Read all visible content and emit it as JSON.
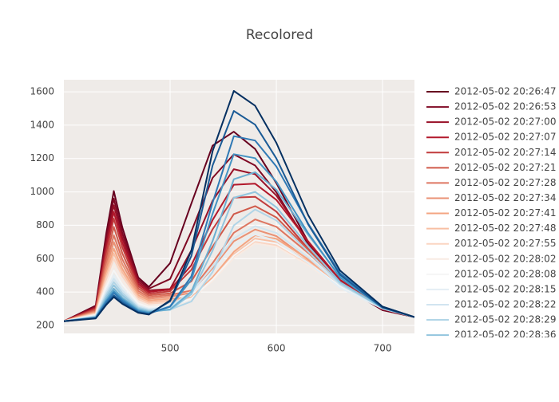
{
  "chart_data": {
    "type": "line",
    "title": "Recolored",
    "grid": true,
    "legend": "right",
    "xlim": [
      400,
      730
    ],
    "xticks": [
      500,
      600,
      700
    ],
    "ylim": [
      152,
      1672
    ],
    "yticks": [
      200,
      400,
      600,
      800,
      1000,
      1200,
      1400,
      1600
    ],
    "x": [
      400,
      430,
      440,
      447,
      455,
      470,
      480,
      500,
      520,
      540,
      560,
      580,
      600,
      630,
      660,
      700,
      730
    ],
    "series": [
      {
        "name": "2012-05-02 20:26:47",
        "color": "#67001f",
        "values": [
          225,
          319,
          755,
          1005,
          787,
          487,
          430,
          573,
          930,
          1277,
          1361,
          1257,
          1052,
          700,
          445,
          291,
          250
        ]
      },
      {
        "name": "2012-05-02 20:26:53",
        "color": "#7f0823",
        "values": [
          225,
          313,
          725,
          960,
          754,
          474,
          420,
          478,
          763,
          1084,
          1225,
          1158,
          997,
          685,
          448,
          294,
          250
        ]
      },
      {
        "name": "2012-05-02 20:27:00",
        "color": "#981027",
        "values": [
          225,
          308,
          698,
          920,
          725,
          461,
          410,
          418,
          649,
          947,
          1136,
          1106,
          978,
          700,
          462,
          300,
          250
        ]
      },
      {
        "name": "2012-05-02 20:27:07",
        "color": "#b2182b",
        "values": [
          225,
          304,
          670,
          880,
          697,
          448,
          400,
          415,
          560,
          831,
          1043,
          1049,
          952,
          703,
          473,
          306,
          250
        ]
      },
      {
        "name": "2012-05-02 20:27:14",
        "color": "#c13b3c",
        "values": [
          225,
          299,
          643,
          840,
          668,
          435,
          390,
          405,
          533,
          776,
          966,
          971,
          882,
          658,
          450,
          301,
          250
        ]
      },
      {
        "name": "2012-05-02 20:27:21",
        "color": "#d05a4a",
        "values": [
          225,
          293,
          609,
          790,
          632,
          421,
          380,
          392,
          464,
          671,
          867,
          915,
          847,
          653,
          456,
          306,
          250
        ]
      },
      {
        "name": "2012-05-02 20:27:28",
        "color": "#de7661",
        "values": [
          225,
          287,
          575,
          740,
          596,
          407,
          370,
          382,
          409,
          573,
          755,
          835,
          791,
          634,
          458,
          309,
          250
        ]
      },
      {
        "name": "2012-05-02 20:27:34",
        "color": "#ea9174",
        "values": [
          225,
          282,
          548,
          700,
          567,
          394,
          360,
          372,
          396,
          543,
          704,
          775,
          735,
          593,
          436,
          303,
          250
        ]
      },
      {
        "name": "2012-05-02 20:27:41",
        "color": "#f4a582",
        "values": [
          225,
          277,
          521,
          660,
          538,
          381,
          350,
          360,
          366,
          487,
          641,
          740,
          719,
          597,
          447,
          310,
          250
        ]
      },
      {
        "name": "2012-05-02 20:27:48",
        "color": "#f8bfa3",
        "values": [
          225,
          274,
          500,
          630,
          517,
          369,
          340,
          350,
          363,
          479,
          626,
          720,
          700,
          582,
          439,
          307,
          250
        ]
      },
      {
        "name": "2012-05-02 20:27:55",
        "color": "#fbd5c2",
        "values": [
          225,
          270,
          480,
          600,
          495,
          357,
          330,
          340,
          360,
          471,
          611,
          701,
          680,
          568,
          431,
          305,
          250
        ]
      },
      {
        "name": "2012-05-02 20:28:02",
        "color": "#f8ebe3",
        "values": [
          225,
          265,
          453,
          560,
          466,
          344,
          320,
          325,
          358,
          466,
          603,
          691,
          671,
          560,
          426,
          304,
          250
        ]
      },
      {
        "name": "2012-05-02 20:28:08",
        "color": "#f5f5f5",
        "values": [
          225,
          262,
          432,
          530,
          445,
          332,
          310,
          315,
          361,
          475,
          618,
          711,
          690,
          575,
          435,
          306,
          250
        ]
      },
      {
        "name": "2012-05-02 20:28:15",
        "color": "#e4eef4",
        "values": [
          225,
          258,
          412,
          500,
          423,
          320,
          300,
          309,
          390,
          528,
          679,
          745,
          707,
          573,
          425,
          300,
          250
        ]
      },
      {
        "name": "2012-05-02 20:28:22",
        "color": "#d1e5f0",
        "values": [
          225,
          256,
          398,
          480,
          409,
          314,
          295,
          313,
          400,
          553,
          721,
          795,
          754,
          607,
          443,
          305,
          250
        ]
      },
      {
        "name": "2012-05-02 20:28:29",
        "color": "#b1d5e7",
        "values": [
          225,
          253,
          385,
          460,
          394,
          307,
          290,
          295,
          343,
          520,
          799,
          895,
          829,
          641,
          450,
          304,
          250
        ]
      },
      {
        "name": "2012-05-02 20:28:36",
        "color": "#92c5de",
        "values": [
          225,
          251,
          371,
          440,
          380,
          301,
          285,
          293,
          387,
          648,
          965,
          1000,
          908,
          675,
          459,
          303,
          250
        ]
      },
      {
        "color": "#6aaed1",
        "values": [
          225,
          248,
          358,
          420,
          365,
          294,
          280,
          296,
          402,
          705,
          1076,
          1118,
          1013,
          743,
          492,
          311,
          250
        ]
      },
      {
        "color": "#4393c3",
        "values": [
          225,
          247,
          347,
          405,
          355,
          288,
          275,
          311,
          473,
          869,
          1226,
          1202,
          1061,
          752,
          486,
          306,
          250
        ]
      },
      {
        "color": "#2f79b5",
        "values": [
          225,
          245,
          341,
          395,
          347,
          283,
          270,
          314,
          494,
          935,
          1334,
          1308,
          1152,
          809,
          513,
          312,
          250
        ]
      },
      {
        "color": "#1b5b96",
        "values": [
          225,
          244,
          330,
          380,
          337,
          279,
          268,
          344,
          615,
          1158,
          1485,
          1403,
          1200,
          804,
          503,
          307,
          250
        ]
      },
      {
        "color": "#053061",
        "values": [
          225,
          242,
          324,
          370,
          329,
          276,
          265,
          350,
          648,
          1244,
          1605,
          1516,
          1294,
          860,
          528,
          312,
          250
        ]
      }
    ]
  }
}
